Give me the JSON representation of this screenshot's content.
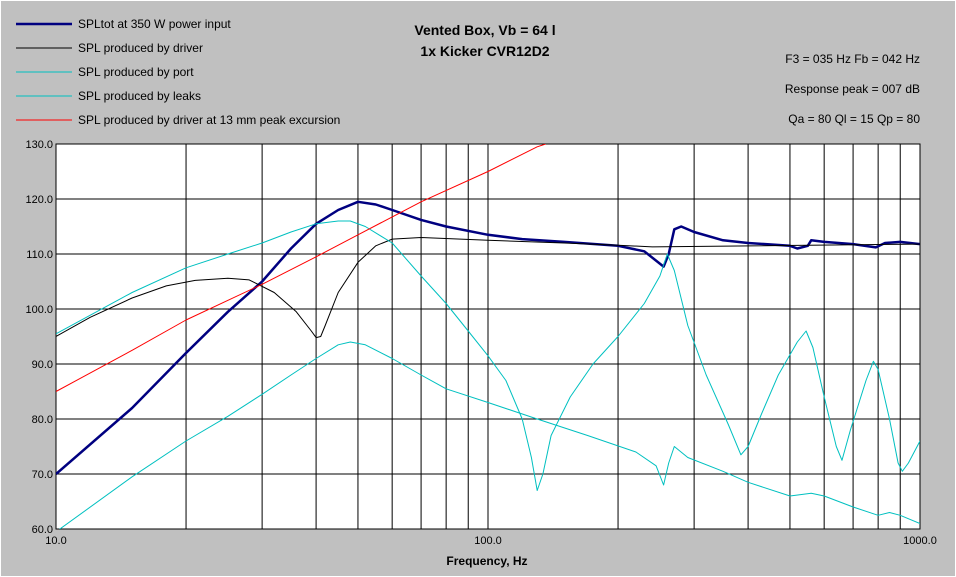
{
  "chart_data": {
    "type": "line",
    "title": [
      "Vented Box, Vb = 64 l",
      "1x Kicker CVR12D2"
    ],
    "info": [
      "F3 = 035 Hz  Fb = 042 Hz",
      "Response peak = 007 dB",
      "Qa = 80  Ql = 15  Qp = 80"
    ],
    "xlabel": "Frequency, Hz",
    "ylabel": "",
    "xscale": "log",
    "xlim": [
      10,
      1000
    ],
    "ylim": [
      60,
      130
    ],
    "x_tick_labels": [
      "10.0",
      "100.0",
      "1000.0"
    ],
    "y_ticks": [
      "60.0",
      "70.0",
      "80.0",
      "90.0",
      "100.0",
      "110.0",
      "120.0",
      "130.0"
    ],
    "grid": true,
    "legend_position": "top-left",
    "series": [
      {
        "name": "SPLtot at 350 W power input",
        "color": "#000080",
        "width": 2.5,
        "points": [
          [
            10,
            70
          ],
          [
            15,
            82
          ],
          [
            20,
            92
          ],
          [
            25,
            99.5
          ],
          [
            30,
            105
          ],
          [
            35,
            111
          ],
          [
            40,
            115.5
          ],
          [
            45,
            118
          ],
          [
            50,
            119.5
          ],
          [
            55,
            119
          ],
          [
            60,
            118
          ],
          [
            70,
            116.2
          ],
          [
            80,
            115
          ],
          [
            100,
            113.5
          ],
          [
            120,
            112.7
          ],
          [
            150,
            112.2
          ],
          [
            200,
            111.5
          ],
          [
            230,
            110.5
          ],
          [
            255,
            107.7
          ],
          [
            262,
            110
          ],
          [
            270,
            114.5
          ],
          [
            280,
            115
          ],
          [
            300,
            114
          ],
          [
            350,
            112.5
          ],
          [
            400,
            112
          ],
          [
            500,
            111.5
          ],
          [
            520,
            111
          ],
          [
            550,
            111.5
          ],
          [
            560,
            112.5
          ],
          [
            600,
            112.2
          ],
          [
            700,
            111.8
          ],
          [
            790,
            111.2
          ],
          [
            830,
            112
          ],
          [
            900,
            112.2
          ],
          [
            1000,
            111.8
          ]
        ]
      },
      {
        "name": "SPL produced by driver",
        "color": "#000000",
        "width": 1,
        "points": [
          [
            10,
            95
          ],
          [
            12,
            98.5
          ],
          [
            15,
            102
          ],
          [
            18,
            104.2
          ],
          [
            21,
            105.2
          ],
          [
            25,
            105.6
          ],
          [
            28,
            105.3
          ],
          [
            32,
            103
          ],
          [
            36,
            99.5
          ],
          [
            39,
            96
          ],
          [
            40,
            94.8
          ],
          [
            41,
            95
          ],
          [
            42,
            97
          ],
          [
            45,
            103
          ],
          [
            50,
            108.5
          ],
          [
            55,
            111.5
          ],
          [
            60,
            112.7
          ],
          [
            70,
            113
          ],
          [
            100,
            112.5
          ],
          [
            150,
            112
          ],
          [
            200,
            111.6
          ],
          [
            240,
            111.3
          ],
          [
            1000,
            111.8
          ]
        ]
      },
      {
        "name": "SPL produced by port",
        "color": "#00c0c0",
        "width": 1,
        "points": [
          [
            10,
            95.5
          ],
          [
            15,
            103
          ],
          [
            20,
            107.5
          ],
          [
            25,
            110
          ],
          [
            30,
            112
          ],
          [
            35,
            114
          ],
          [
            40,
            115.5
          ],
          [
            45,
            116
          ],
          [
            48,
            116
          ],
          [
            52,
            115
          ],
          [
            60,
            112
          ],
          [
            70,
            106
          ],
          [
            80,
            101
          ],
          [
            90,
            96
          ],
          [
            100,
            91.5
          ],
          [
            110,
            87
          ],
          [
            120,
            80
          ],
          [
            126,
            73
          ],
          [
            130,
            67
          ],
          [
            134,
            70
          ],
          [
            140,
            77
          ],
          [
            155,
            84
          ],
          [
            175,
            90
          ],
          [
            200,
            95
          ],
          [
            230,
            101
          ],
          [
            250,
            106
          ],
          [
            260,
            110
          ],
          [
            270,
            107
          ],
          [
            290,
            97
          ],
          [
            320,
            88
          ],
          [
            360,
            79
          ],
          [
            385,
            73.5
          ],
          [
            400,
            75
          ],
          [
            430,
            81
          ],
          [
            470,
            88
          ],
          [
            520,
            94
          ],
          [
            545,
            96
          ],
          [
            565,
            93
          ],
          [
            600,
            84
          ],
          [
            640,
            75
          ],
          [
            660,
            72.5
          ],
          [
            690,
            78
          ],
          [
            750,
            87
          ],
          [
            780,
            90.5
          ],
          [
            800,
            89
          ],
          [
            850,
            80
          ],
          [
            890,
            72
          ],
          [
            910,
            70.5
          ],
          [
            940,
            72
          ],
          [
            1000,
            76
          ]
        ]
      },
      {
        "name": "SPL produced by leaks",
        "color": "#00c0c0",
        "width": 1,
        "points": [
          [
            10,
            59.5
          ],
          [
            15,
            69.5
          ],
          [
            20,
            76
          ],
          [
            25,
            80.5
          ],
          [
            30,
            84.5
          ],
          [
            35,
            88
          ],
          [
            40,
            91
          ],
          [
            45,
            93.5
          ],
          [
            48,
            94
          ],
          [
            52,
            93.5
          ],
          [
            60,
            91
          ],
          [
            70,
            88
          ],
          [
            80,
            85.5
          ],
          [
            100,
            83
          ],
          [
            130,
            80
          ],
          [
            170,
            77
          ],
          [
            220,
            74
          ],
          [
            245,
            71.5
          ],
          [
            255,
            68
          ],
          [
            262,
            72
          ],
          [
            270,
            75
          ],
          [
            290,
            73
          ],
          [
            350,
            70.5
          ],
          [
            400,
            68.5
          ],
          [
            500,
            66
          ],
          [
            560,
            66.5
          ],
          [
            600,
            66
          ],
          [
            700,
            64
          ],
          [
            800,
            62.5
          ],
          [
            850,
            63
          ],
          [
            900,
            62.5
          ],
          [
            1000,
            61
          ]
        ]
      },
      {
        "name": "SPL produced by driver at 13 mm peak excursion",
        "color": "#ff0000",
        "width": 1,
        "points": [
          [
            10,
            85
          ],
          [
            15,
            92.5
          ],
          [
            20,
            98
          ],
          [
            30,
            104.5
          ],
          [
            40,
            109.5
          ],
          [
            50,
            113.5
          ],
          [
            70,
            119.5
          ],
          [
            100,
            125
          ],
          [
            130,
            129.5
          ],
          [
            136,
            130
          ]
        ]
      }
    ]
  }
}
